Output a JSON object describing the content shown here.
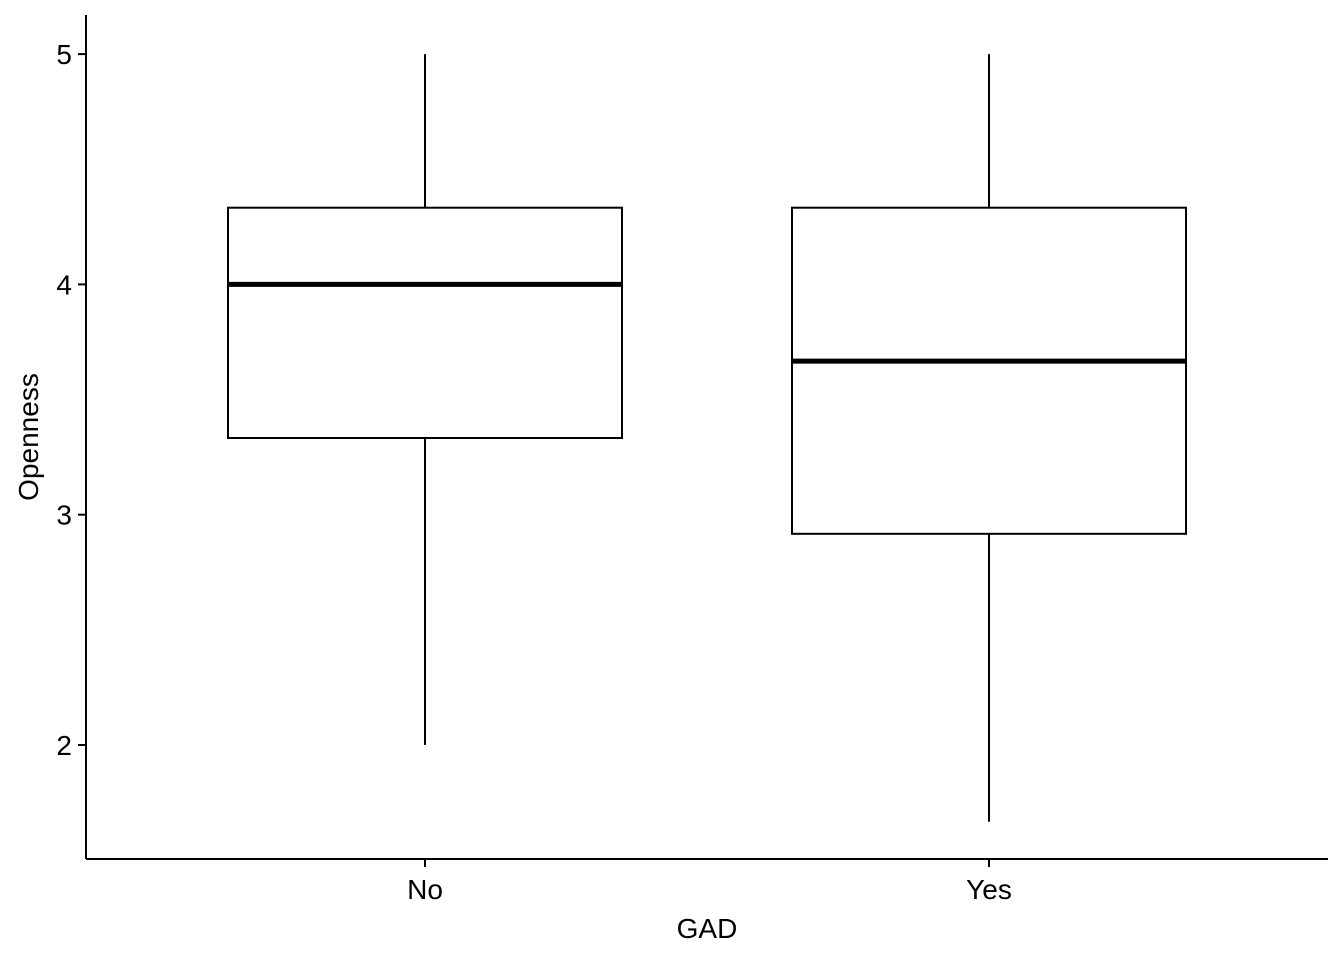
{
  "chart_data": {
    "type": "boxplot",
    "xlabel": "GAD",
    "ylabel": "Openness",
    "categories": [
      "No",
      "Yes"
    ],
    "boxes": [
      {
        "category": "No",
        "whisker_low": 2.0,
        "q1": 3.333,
        "median": 4.0,
        "q3": 4.333,
        "whisker_high": 5.0
      },
      {
        "category": "Yes",
        "whisker_low": 1.667,
        "q1": 2.917,
        "median": 3.667,
        "q3": 4.333,
        "whisker_high": 5.0
      }
    ],
    "yticks": [
      "2",
      "3",
      "4",
      "5"
    ],
    "ylim": [
      1.5,
      5.17
    ],
    "grid": false,
    "colors": {
      "box_fill": "#ffffff",
      "stroke": "#000000"
    }
  }
}
